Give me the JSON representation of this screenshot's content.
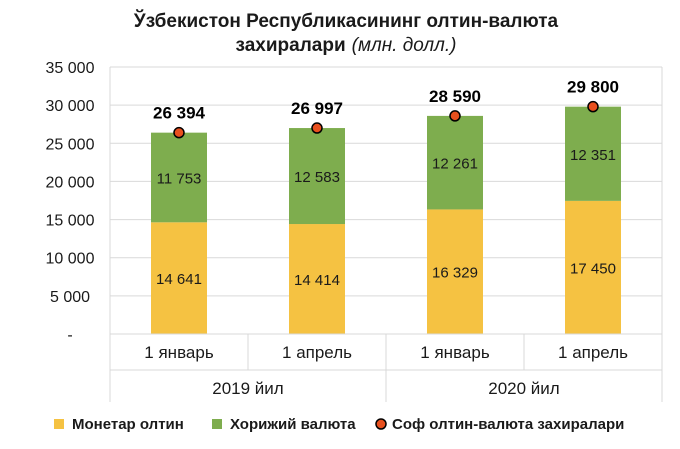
{
  "title": {
    "line1": "Ўзбекистон Республикасининг олтин-валюта",
    "line2": "захиралари",
    "unit": "(млн. долл.)"
  },
  "colors": {
    "gold": "#F5C242",
    "currency": "#7EAD4E",
    "dot_fill": "#E8501E",
    "dot_stroke": "#000000",
    "grid": "#D9D9D9"
  },
  "chart_data": {
    "type": "bar",
    "stacked": true,
    "categories": [
      "1 январь",
      "1 апрель",
      "1 январь",
      "1 апрель"
    ],
    "groups": [
      {
        "label": "2019 йил",
        "categories": [
          0,
          1
        ]
      },
      {
        "label": "2020 йил",
        "categories": [
          2,
          3
        ]
      }
    ],
    "series": [
      {
        "name": "Монетар олтин",
        "values": [
          14641,
          14414,
          16329,
          17450
        ],
        "labels": [
          "14 641",
          "14 414",
          "16 329",
          "17 450"
        ]
      },
      {
        "name": "Хорижий валюта",
        "values": [
          11753,
          12583,
          12261,
          12351
        ],
        "labels": [
          "11 753",
          "12 583",
          "12 261",
          "12 351"
        ]
      }
    ],
    "totals": {
      "name": "Соф олтин-валюта захиралари",
      "values": [
        26394,
        26997,
        28590,
        29800
      ],
      "labels": [
        "26 394",
        "26 997",
        "28 590",
        "29 800"
      ]
    },
    "yticks": [
      "-",
      "5 000",
      "10 000",
      "15 000",
      "20 000",
      "25 000",
      "30 000",
      "35 000"
    ],
    "ylim": [
      0,
      35000
    ],
    "grid": true,
    "legend_position": "bottom"
  }
}
